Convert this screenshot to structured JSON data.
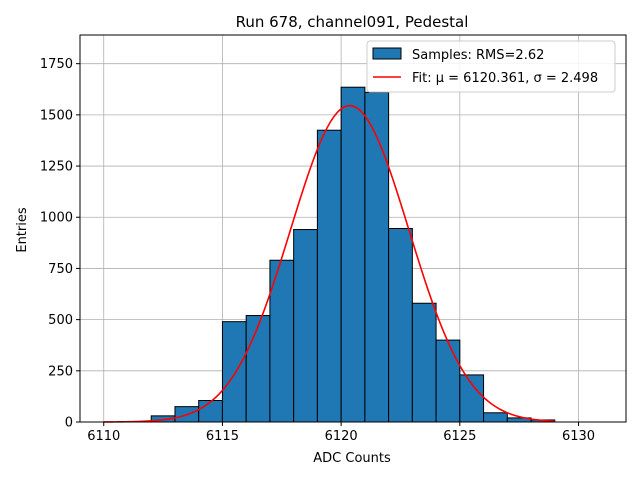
{
  "chart_data": {
    "type": "bar",
    "title": "Run 678, channel091, Pedestal",
    "xlabel": "ADC Counts",
    "ylabel": "Entries",
    "xlim": [
      6109,
      6132
    ],
    "ylim": [
      0,
      1890
    ],
    "xticks": [
      6110,
      6115,
      6120,
      6125,
      6130
    ],
    "yticks": [
      0,
      250,
      500,
      750,
      1000,
      1250,
      1500,
      1750
    ],
    "grid": true,
    "legend_position": "top-right",
    "histogram": {
      "name": "Samples: RMS=2.62",
      "color": "#1f77b4",
      "edge_color": "#000000",
      "bin_edges": [
        6112,
        6113,
        6114,
        6115,
        6116,
        6117,
        6118,
        6119,
        6120,
        6121,
        6122,
        6123,
        6124,
        6125,
        6126,
        6127,
        6128,
        6129
      ],
      "counts": [
        30,
        75,
        105,
        490,
        520,
        790,
        940,
        1425,
        1635,
        1610,
        945,
        580,
        400,
        230,
        45,
        20,
        10
      ]
    },
    "fit": {
      "name": "Fit: μ = 6120.361, σ = 2.498",
      "color": "#ff0000",
      "mu": 6120.361,
      "sigma": 2.498,
      "peak": 1545,
      "x_range": [
        6110,
        6129
      ]
    }
  }
}
